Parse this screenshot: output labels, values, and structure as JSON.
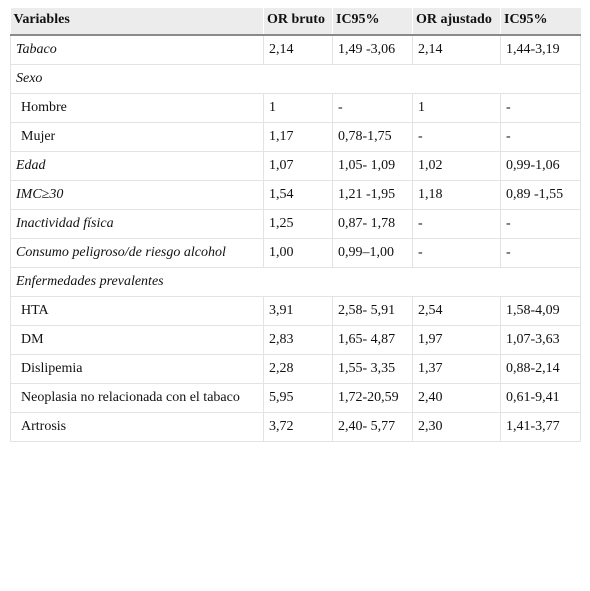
{
  "table": {
    "headers": [
      "Variables",
      "OR bruto",
      "IC95%",
      "OR ajustado",
      "IC95%"
    ],
    "rows": [
      {
        "cells": [
          "Tabaco",
          "2,14",
          "1,49 -3,06",
          "2,14",
          "1,44-3,19"
        ],
        "italic": true,
        "indent": false,
        "section": false
      },
      {
        "cells": [
          "Sexo"
        ],
        "italic": true,
        "indent": false,
        "section": true
      },
      {
        "cells": [
          "Hombre",
          "1",
          "-",
          "1",
          "-"
        ],
        "italic": false,
        "indent": true,
        "section": false
      },
      {
        "cells": [
          "Mujer",
          "1,17",
          "0,78-1,75",
          "-",
          "-"
        ],
        "italic": false,
        "indent": true,
        "section": false
      },
      {
        "cells": [
          "Edad",
          "1,07",
          "1,05- 1,09",
          "1,02",
          "0,99-1,06"
        ],
        "italic": true,
        "indent": false,
        "section": false
      },
      {
        "cells": [
          "IMC≥30",
          "1,54",
          "1,21 -1,95",
          "1,18",
          "0,89 -1,55"
        ],
        "italic": true,
        "indent": false,
        "section": false
      },
      {
        "cells": [
          "Inactividad física",
          "1,25",
          "0,87- 1,78",
          "-",
          "-"
        ],
        "italic": true,
        "indent": false,
        "section": false
      },
      {
        "cells": [
          "Consumo peligroso/de riesgo alcohol",
          "1,00",
          "0,99–1,00",
          "-",
          "-"
        ],
        "italic": true,
        "indent": false,
        "section": false
      },
      {
        "cells": [
          "Enfermedades prevalentes"
        ],
        "italic": true,
        "indent": false,
        "section": true
      },
      {
        "cells": [
          "HTA",
          "3,91",
          "2,58- 5,91",
          "2,54",
          "1,58-4,09"
        ],
        "italic": false,
        "indent": true,
        "section": false
      },
      {
        "cells": [
          "DM",
          "2,83",
          "1,65- 4,87",
          "1,97",
          "1,07-3,63"
        ],
        "italic": false,
        "indent": true,
        "section": false
      },
      {
        "cells": [
          "Dislipemia",
          "2,28",
          "1,55- 3,35",
          "1,37",
          "0,88-2,14"
        ],
        "italic": false,
        "indent": true,
        "section": false
      },
      {
        "cells": [
          "Neoplasia no relacionada con el tabaco",
          "5,95",
          "1,72-20,59",
          "2,40",
          "0,61-9,41"
        ],
        "italic": false,
        "indent": true,
        "section": false
      },
      {
        "cells": [
          "Artrosis",
          "3,72",
          "2,40- 5,77",
          "2,30",
          "1,41-3,77"
        ],
        "italic": false,
        "indent": true,
        "section": false
      }
    ]
  }
}
